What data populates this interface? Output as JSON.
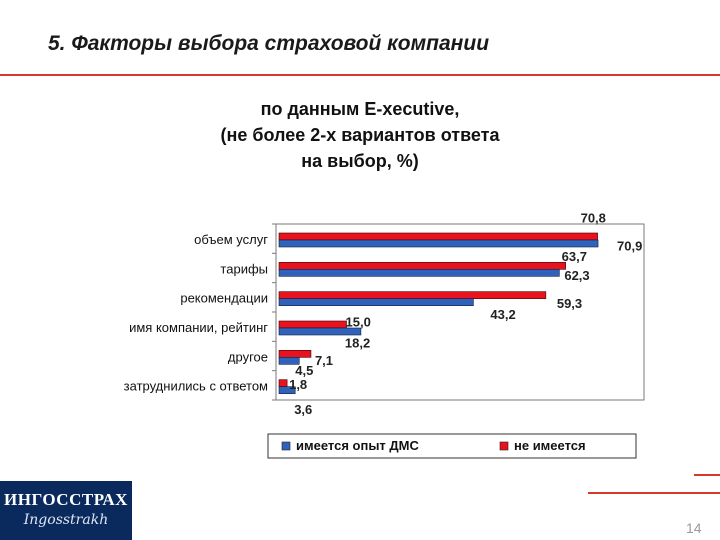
{
  "slide": {
    "title": "5. Факторы выбора страховой компании",
    "page_number": "14",
    "accent_color": "#d33a2c"
  },
  "logo": {
    "main_text": "ИНГОССТРАХ",
    "sub_text": "Ingosstrakh",
    "background": "#0a2a5e"
  },
  "chart_data": {
    "type": "bar",
    "orientation": "horizontal",
    "title_lines": [
      "по данным E-xecutive,",
      "(не более 2-х вариантов ответа",
      "на выбор, %)"
    ],
    "categories": [
      "объем услуг",
      "тарифы",
      "рекомендации",
      "имя компании, рейтинг",
      "другое",
      "затруднились с ответом"
    ],
    "series": [
      {
        "name": "не имеется",
        "color": "#e8131f",
        "values": [
          70.8,
          63.7,
          59.3,
          15.0,
          7.1,
          1.8
        ],
        "labels": [
          "70,8",
          "63,7",
          "59,3",
          "15,0",
          "7,1",
          "1,8"
        ]
      },
      {
        "name": "имеется опыт ДМС",
        "color": "#2f62b8",
        "values": [
          70.9,
          62.3,
          43.2,
          18.2,
          4.5,
          3.6
        ],
        "labels": [
          "70,9",
          "62,3",
          "43,2",
          "18,2",
          "4,5",
          "3,6"
        ]
      }
    ],
    "legend_order": [
      1,
      0
    ],
    "legend_position": "bottom",
    "xlim": [
      0,
      80
    ],
    "grid": false
  }
}
